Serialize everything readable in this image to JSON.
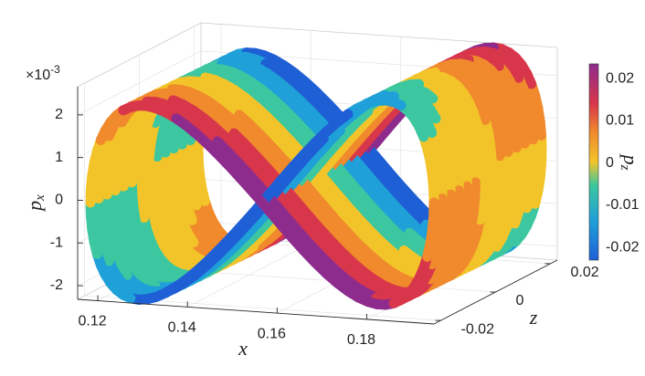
{
  "chart_data": {
    "type": "scatter3d",
    "xlabel": "x",
    "ylabel": {
      "base": "p",
      "sub": "x"
    },
    "zlabel": "z",
    "colorbar_label": {
      "base": "p",
      "sub": "z"
    },
    "y_multiplier": {
      "base": "×10",
      "exponent": "-3"
    },
    "xlim": [
      0.1155,
      0.195
    ],
    "xticks": [
      0.12,
      0.14,
      0.16,
      0.18
    ],
    "ylim": [
      -0.00232,
      0.00266
    ],
    "yticks": [
      {
        "value": -0.002,
        "label": "-2"
      },
      {
        "value": -0.001,
        "label": "-1"
      },
      {
        "value": 0,
        "label": "0"
      },
      {
        "value": 0.001,
        "label": "1"
      },
      {
        "value": 0.002,
        "label": "2"
      }
    ],
    "zlim": [
      -0.0225,
      0.0225
    ],
    "zticks": [
      -0.02,
      0,
      0.02
    ],
    "clim": [
      -0.023,
      0.0235
    ],
    "cticks": [
      -0.02,
      -0.01,
      0,
      0.01,
      0.02
    ],
    "grid": true
  }
}
